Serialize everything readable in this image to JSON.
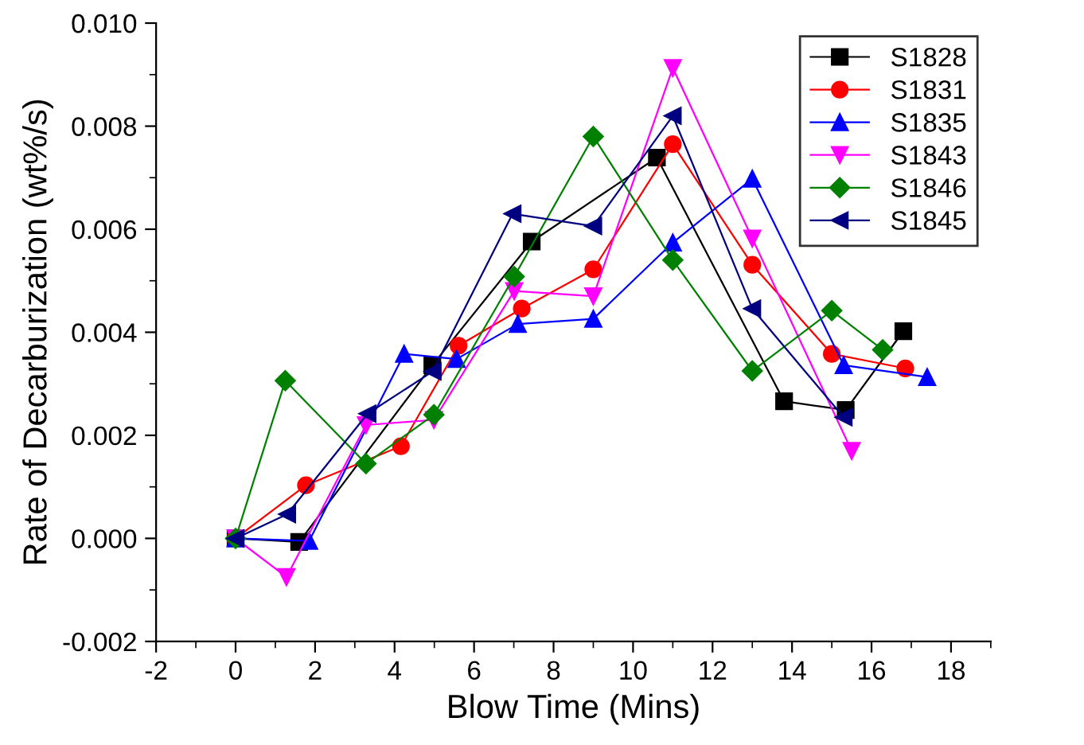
{
  "chart_data": {
    "type": "line",
    "xlabel": "Blow Time (Mins)",
    "ylabel": "Rate of Decarburization (wt%/s)",
    "xlim": [
      -2,
      19
    ],
    "xticks": [
      -2,
      0,
      2,
      4,
      6,
      8,
      10,
      12,
      14,
      16,
      18
    ],
    "ylim": [
      -0.002,
      0.01
    ],
    "yticks": [
      {
        "value": -0.002,
        "label": "-0.002"
      },
      {
        "value": 0,
        "label": "0.000"
      },
      {
        "value": 0.002,
        "label": "0.002"
      },
      {
        "value": 0.004,
        "label": "0.004"
      },
      {
        "value": 0.006,
        "label": "0.006"
      },
      {
        "value": 0.008,
        "label": "0.008"
      },
      {
        "value": 0.01,
        "label": "0.010"
      }
    ],
    "grid": false,
    "legend": "top right",
    "line_style": "solid",
    "series": [
      {
        "name": "S1828",
        "color": "#000000",
        "marker": "square",
        "x": [
          0,
          1.6,
          4.95,
          7.45,
          10.6,
          13.8,
          15.35,
          16.8
        ],
        "values": [
          0,
          -7e-05,
          0.00336,
          0.00576,
          0.00739,
          0.00266,
          0.00249,
          0.00402
        ]
      },
      {
        "name": "S1831",
        "color": "#ff0000",
        "marker": "circle",
        "x": [
          0,
          1.77,
          4.16,
          5.61,
          7.2,
          9.0,
          11.0,
          13.0,
          15.0,
          16.85
        ],
        "values": [
          0,
          0.00103,
          0.00179,
          0.00374,
          0.00446,
          0.00522,
          0.00765,
          0.00531,
          0.00358,
          0.0033
        ]
      },
      {
        "name": "S1835",
        "color": "#0000ff",
        "marker": "triangle",
        "x": [
          0,
          1.85,
          4.24,
          5.56,
          7.1,
          9.0,
          11.0,
          13.0,
          15.3,
          17.4
        ],
        "values": [
          0,
          -5e-05,
          0.00358,
          0.00348,
          0.00416,
          0.00426,
          0.00574,
          0.00698,
          0.00336,
          0.00313
        ]
      },
      {
        "name": "S1843",
        "color": "#ff00ff",
        "marker": "triangle-down",
        "x": [
          0,
          1.28,
          3.28,
          4.99,
          7.01,
          9.0,
          11.0,
          13.0,
          15.5
        ],
        "values": [
          0,
          -0.00075,
          0.0022,
          0.0023,
          0.0048,
          0.0047,
          0.00913,
          0.00582,
          0.0017
        ]
      },
      {
        "name": "S1846",
        "color": "#008000",
        "marker": "diamond",
        "x": [
          0,
          1.25,
          3.28,
          4.99,
          7.01,
          9.0,
          11.0,
          13.0,
          15.0,
          16.28
        ],
        "values": [
          0,
          0.00306,
          0.00145,
          0.0024,
          0.00508,
          0.0078,
          0.0054,
          0.00325,
          0.00442,
          0.00366
        ]
      },
      {
        "name": "S1845",
        "color": "#000080",
        "marker": "triangle-left",
        "x": [
          0,
          1.3,
          3.32,
          4.96,
          6.97,
          9.0,
          11.0,
          13.0,
          15.3
        ],
        "values": [
          0,
          0.00047,
          0.00242,
          0.00324,
          0.0063,
          0.00606,
          0.0082,
          0.00446,
          0.00235
        ]
      }
    ]
  }
}
